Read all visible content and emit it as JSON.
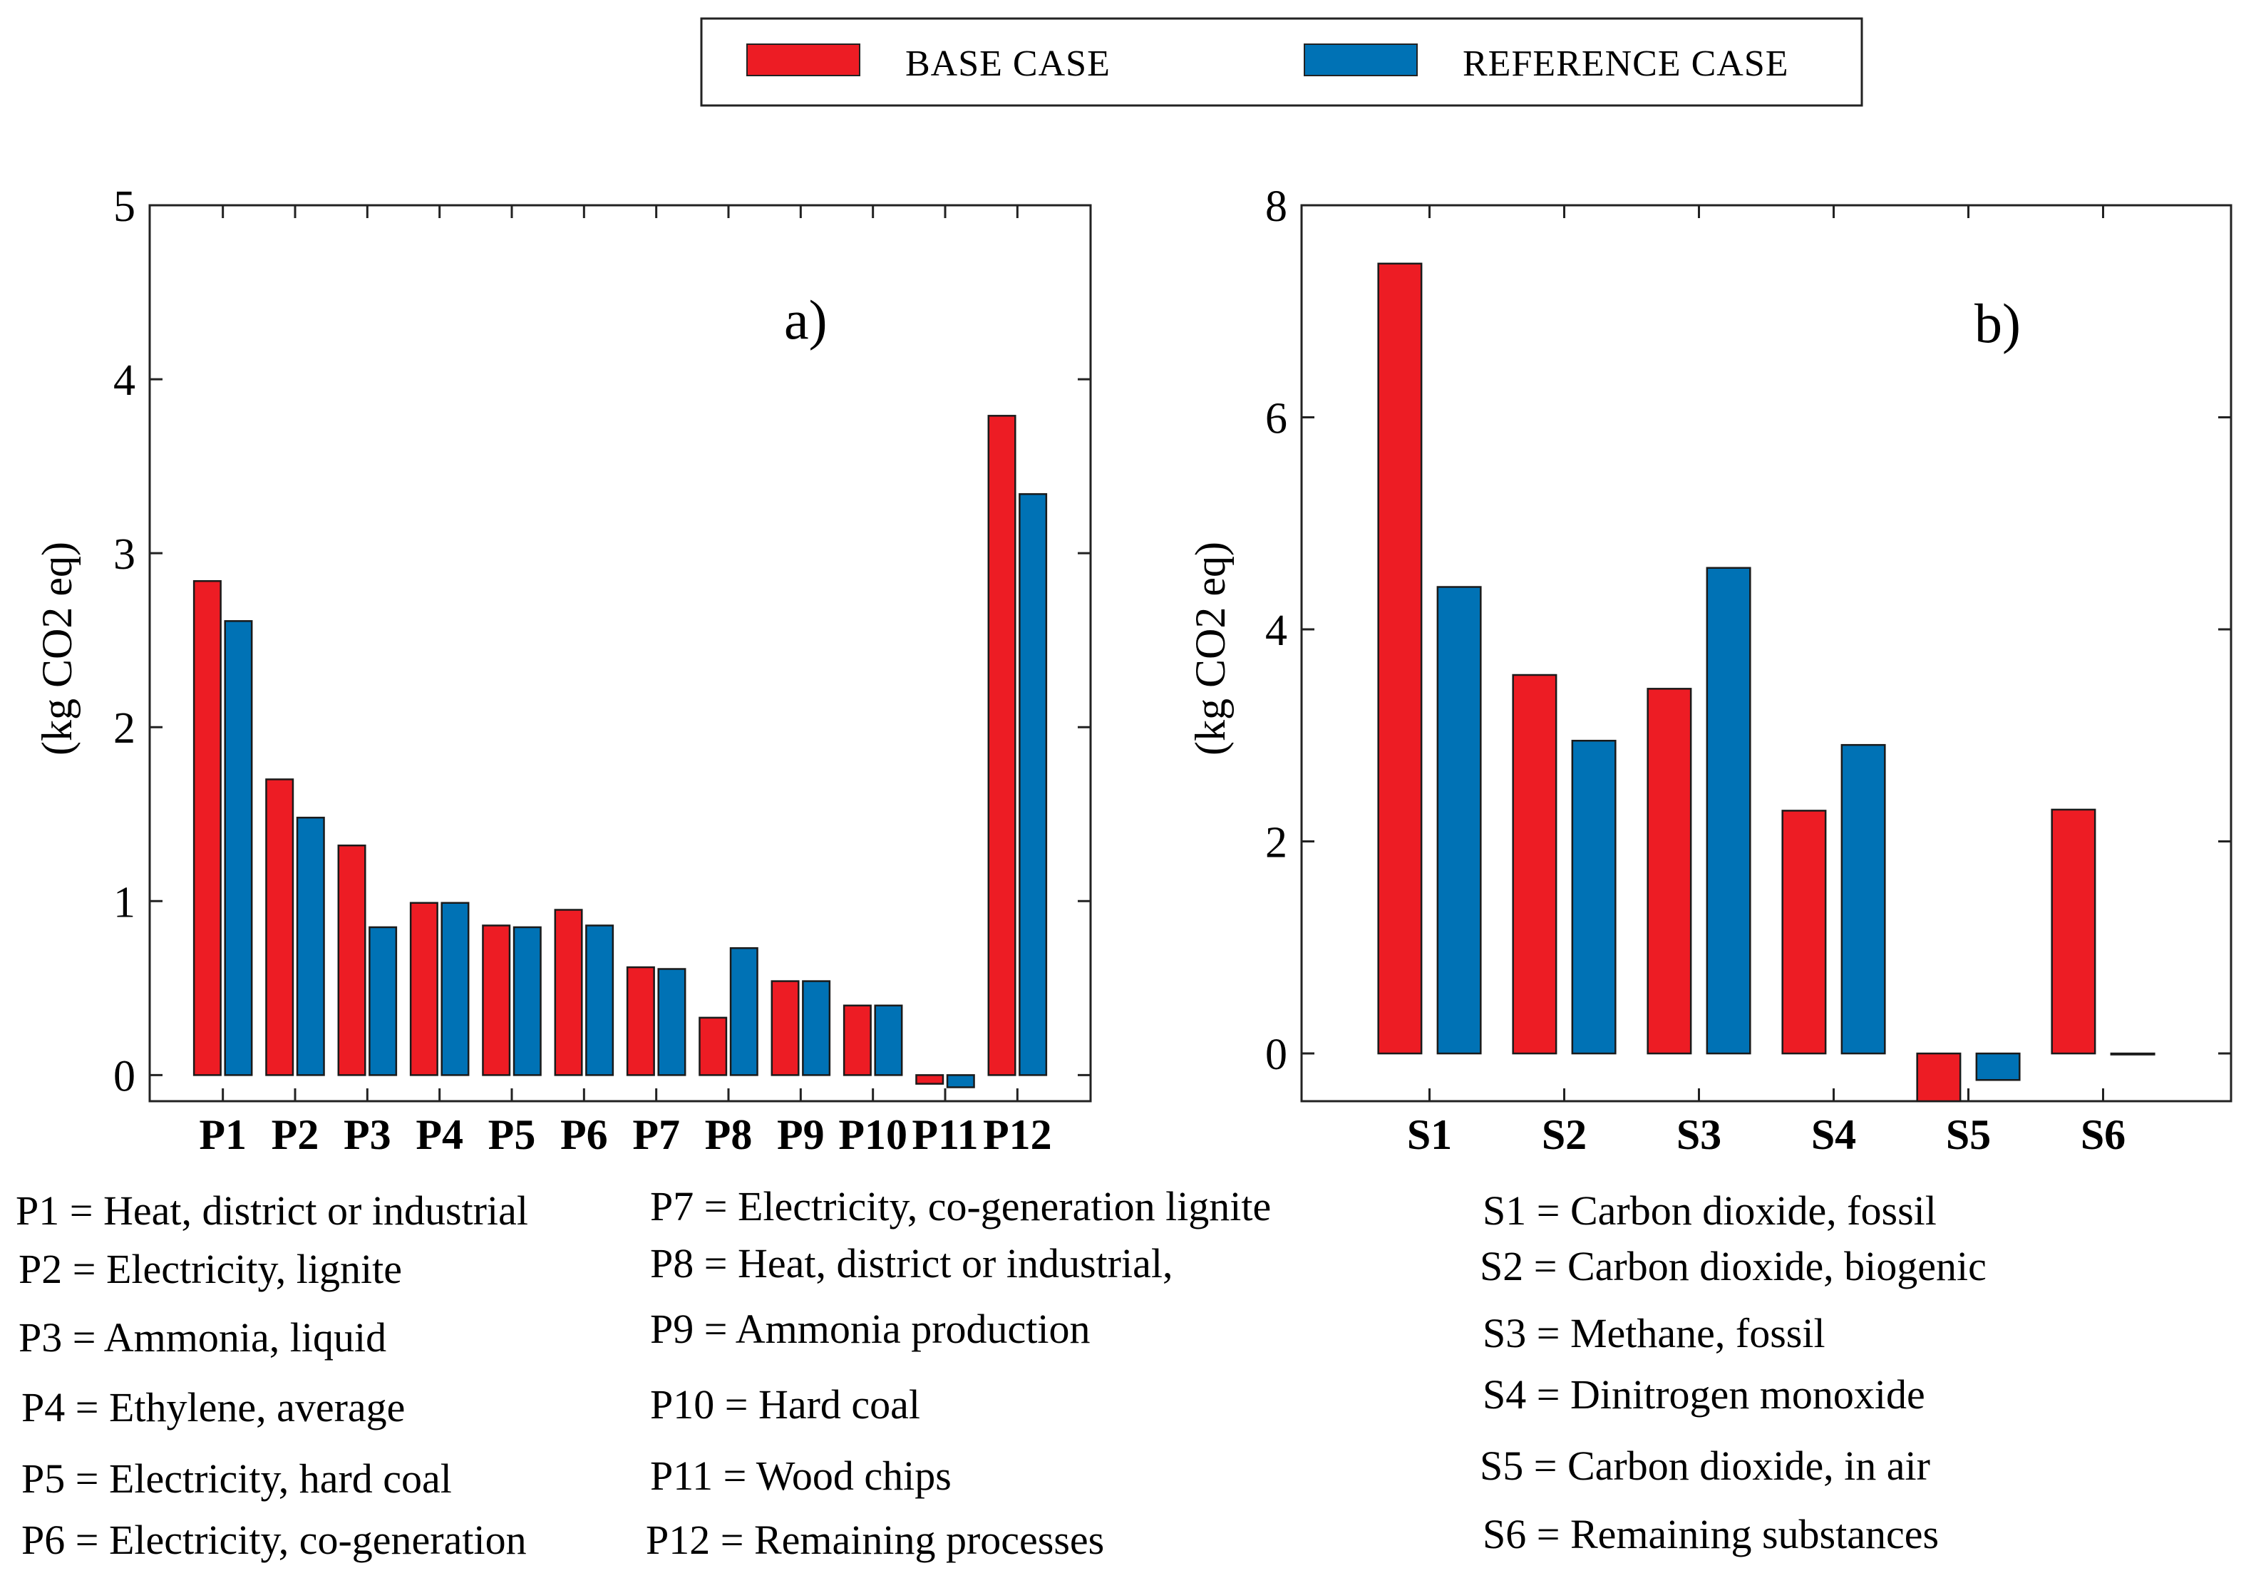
{
  "legend": {
    "items": [
      {
        "label": "BASE CASE",
        "color": "#ed1c24"
      },
      {
        "label": "REFERENCE CASE",
        "color": "#0072b5"
      }
    ]
  },
  "chart_data": [
    {
      "type": "bar",
      "panel_label": "a)",
      "title": "",
      "xlabel": "",
      "ylabel": "(kg CO2 eq)",
      "ylim": [
        -0.15,
        5
      ],
      "yticks": [
        0,
        1,
        2,
        3,
        4,
        5
      ],
      "categories": [
        "P1",
        "P2",
        "P3",
        "P4",
        "P5",
        "P6",
        "P7",
        "P8",
        "P9",
        "P10",
        "P11",
        "P12"
      ],
      "series": [
        {
          "name": "BASE CASE",
          "values": [
            2.84,
            1.7,
            1.32,
            0.99,
            0.86,
            0.95,
            0.62,
            0.33,
            0.54,
            0.4,
            -0.05,
            3.79
          ]
        },
        {
          "name": "REFERENCE CASE",
          "values": [
            2.61,
            1.48,
            0.85,
            0.99,
            0.85,
            0.86,
            0.61,
            0.73,
            0.54,
            0.4,
            -0.07,
            3.34
          ]
        }
      ],
      "descriptions": [
        "P1 = Heat, district or industrial",
        "P2 = Electricity, lignite",
        "P3 = Ammonia, liquid",
        "P4 = Ethylene, average",
        "P5 = Electricity, hard coal",
        "P6 = Electricity, co-generation",
        "P7 = Electricity, co-generation lignite",
        "P8 = Heat, district or industrial,",
        "P9 =  Ammonia production",
        "P10 = Hard coal",
        "P11 = Wood chips",
        "P12 = Remaining processes"
      ]
    },
    {
      "type": "bar",
      "panel_label": "b)",
      "title": "",
      "xlabel": "",
      "ylabel": "(kg CO2 eq)",
      "ylim": [
        -0.45,
        8
      ],
      "yticks": [
        0,
        2,
        4,
        6,
        8
      ],
      "categories": [
        "S1",
        "S2",
        "S3",
        "S4",
        "S5",
        "S6"
      ],
      "series": [
        {
          "name": "BASE CASE",
          "values": [
            7.45,
            3.57,
            3.44,
            2.29,
            -0.45,
            2.3
          ]
        },
        {
          "name": "REFERENCE CASE",
          "values": [
            4.4,
            2.95,
            4.58,
            2.91,
            -0.25,
            0.0
          ]
        }
      ],
      "descriptions": [
        "S1 = Carbon dioxide, fossil",
        "S2 = Carbon dioxide, biogenic",
        "S3 = Methane, fossil",
        "S4 = Dinitrogen monoxide",
        "S5 = Carbon dioxide, in air",
        "S6 = Remaining substances"
      ]
    }
  ]
}
